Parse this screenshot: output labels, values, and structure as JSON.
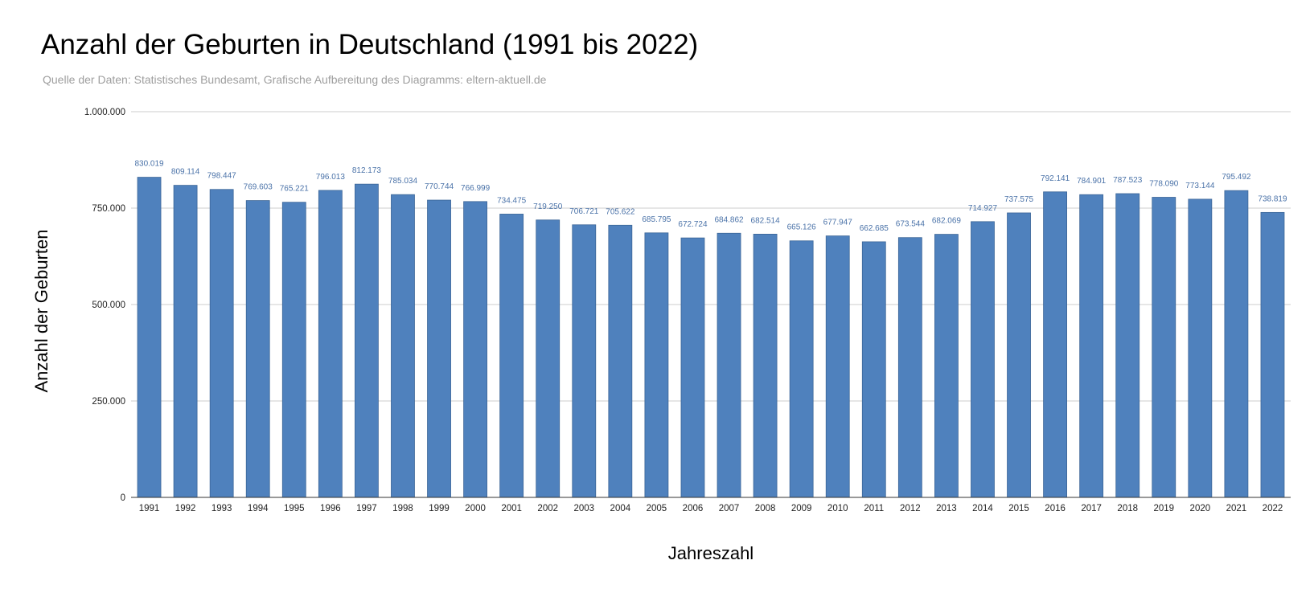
{
  "chart_data": {
    "type": "bar",
    "title": "Anzahl der Geburten in Deutschland (1991 bis 2022)",
    "subtitle": "Quelle der Daten: Statistisches Bundesamt, Grafische Aufbereitung des Diagramms: eltern-aktuell.de",
    "xlabel": "Jahreszahl",
    "ylabel": "Anzahl der Geburten",
    "ylim": [
      0,
      1000000
    ],
    "yticks": [
      0,
      250000,
      500000,
      750000,
      1000000
    ],
    "ytick_labels": [
      "0",
      "250.000",
      "500.000",
      "750.000",
      "1.000.000"
    ],
    "grid": true,
    "bar_color": "#4f81bd",
    "label_color": "#4a72a8",
    "categories": [
      "1991",
      "1992",
      "1993",
      "1994",
      "1995",
      "1996",
      "1997",
      "1998",
      "1999",
      "2000",
      "2001",
      "2002",
      "2003",
      "2004",
      "2005",
      "2006",
      "2007",
      "2008",
      "2009",
      "2010",
      "2011",
      "2012",
      "2013",
      "2014",
      "2015",
      "2016",
      "2017",
      "2018",
      "2019",
      "2020",
      "2021",
      "2022"
    ],
    "values": [
      830019,
      809114,
      798447,
      769603,
      765221,
      796013,
      812173,
      785034,
      770744,
      766999,
      734475,
      719250,
      706721,
      705622,
      685795,
      672724,
      684862,
      682514,
      665126,
      677947,
      662685,
      673544,
      682069,
      714927,
      737575,
      792141,
      784901,
      787523,
      778090,
      773144,
      795492,
      738819
    ],
    "data_labels": [
      "830.019",
      "809.114",
      "798.447",
      "769.603",
      "765.221",
      "796.013",
      "812.173",
      "785.034",
      "770.744",
      "766.999",
      "734.475",
      "719.250",
      "706.721",
      "705.622",
      "685.795",
      "672.724",
      "684.862",
      "682.514",
      "665.126",
      "677.947",
      "662.685",
      "673.544",
      "682.069",
      "714.927",
      "737.575",
      "792.141",
      "784.901",
      "787.523",
      "778.090",
      "773.144",
      "795.492",
      "738.819"
    ]
  }
}
